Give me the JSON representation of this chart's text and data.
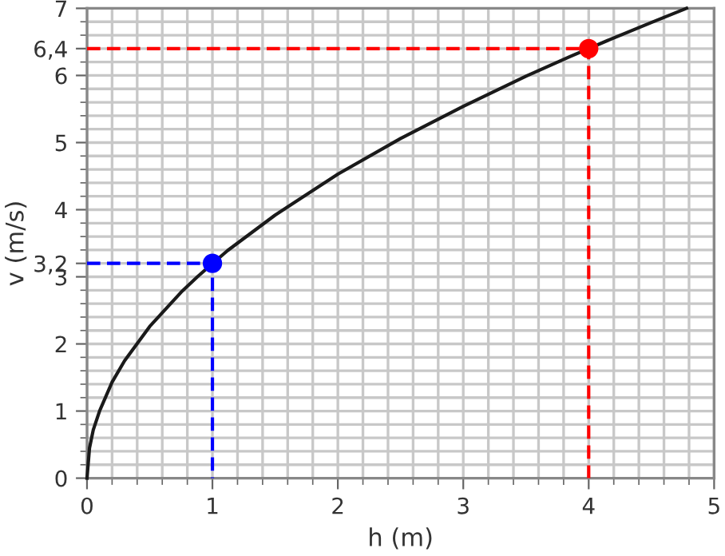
{
  "chart_data": {
    "type": "line",
    "xlabel": "h (m)",
    "ylabel": "v (m/s)",
    "xlim": [
      0,
      5
    ],
    "ylim": [
      0,
      7
    ],
    "xticks": [
      0,
      {
        "value": 0.2,
        "label": null
      },
      {
        "value": 0.4,
        "label": null
      },
      {
        "value": 0.6,
        "label": null
      },
      {
        "value": 0.8,
        "label": null
      },
      1,
      {
        "value": 1.2,
        "label": null
      },
      {
        "value": 1.4,
        "label": null
      },
      {
        "value": 1.6,
        "label": null
      },
      {
        "value": 1.8,
        "label": null
      },
      2,
      {
        "value": 2.2,
        "label": null
      },
      {
        "value": 2.4,
        "label": null
      },
      {
        "value": 2.6,
        "label": null
      },
      {
        "value": 2.8,
        "label": null
      },
      3,
      {
        "value": 3.2,
        "label": null
      },
      {
        "value": 3.4,
        "label": null
      },
      {
        "value": 3.6,
        "label": null
      },
      {
        "value": 3.8,
        "label": null
      },
      4,
      {
        "value": 4.2,
        "label": null
      },
      {
        "value": 4.4,
        "label": null
      },
      {
        "value": 4.6,
        "label": null
      },
      {
        "value": 4.8,
        "label": null
      },
      5
    ],
    "yticks": [
      0,
      {
        "value": 0.2,
        "label": null
      },
      {
        "value": 0.4,
        "label": null
      },
      {
        "value": 0.6,
        "label": null
      },
      {
        "value": 0.8,
        "label": null
      },
      1,
      {
        "value": 1.2,
        "label": null
      },
      {
        "value": 1.4,
        "label": null
      },
      {
        "value": 1.6,
        "label": null
      },
      {
        "value": 1.8,
        "label": null
      },
      2,
      {
        "value": 2.2,
        "label": null
      },
      {
        "value": 2.4,
        "label": null
      },
      {
        "value": 2.6,
        "label": null
      },
      {
        "value": 2.8,
        "label": null
      },
      3,
      {
        "value": 3.2,
        "label": "3,2"
      },
      {
        "value": 3.4,
        "label": null
      },
      {
        "value": 3.6,
        "label": null
      },
      {
        "value": 3.8,
        "label": null
      },
      4,
      {
        "value": 4.2,
        "label": null
      },
      {
        "value": 4.4,
        "label": null
      },
      {
        "value": 4.6,
        "label": null
      },
      {
        "value": 4.8,
        "label": null
      },
      5,
      {
        "value": 5.2,
        "label": null
      },
      {
        "value": 5.4,
        "label": null
      },
      {
        "value": 5.6,
        "label": null
      },
      {
        "value": 5.8,
        "label": null
      },
      6,
      {
        "value": 6.2,
        "label": null
      },
      {
        "value": 6.4,
        "label": "6,4"
      },
      {
        "value": 6.6,
        "label": null
      },
      {
        "value": 6.8,
        "label": null
      },
      7
    ],
    "grid": true,
    "series": [
      {
        "color": "#1a1a1a",
        "line_style": "solid",
        "x": [
          0,
          0.02,
          0.05,
          0.1,
          0.2,
          0.3,
          0.5,
          0.75,
          0.88,
          1.12,
          1.5,
          2,
          2.5,
          3,
          3.5,
          3.85,
          4.15,
          4.5,
          4.78
        ],
        "values": [
          0,
          0.45,
          0.72,
          1.0,
          1.43,
          1.75,
          2.26,
          2.77,
          3.0,
          3.39,
          3.92,
          4.53,
          5.06,
          5.54,
          5.99,
          6.28,
          6.52,
          6.79,
          7.0
        ]
      },
      {
        "color": "#0000ff",
        "line_style": "dashed",
        "x": [
          0,
          1,
          1
        ],
        "values": [
          3.2,
          3.2,
          0
        ]
      },
      {
        "color": "#ff0000",
        "line_style": "dashed",
        "x": [
          0,
          4,
          4
        ],
        "values": [
          6.4,
          6.4,
          0
        ]
      },
      {
        "type": "scatter",
        "color": "#0000ff",
        "marker": "circle",
        "x": [
          1
        ],
        "values": [
          3.2
        ]
      },
      {
        "type": "scatter",
        "color": "#ff0000",
        "marker": "circle",
        "x": [
          4
        ],
        "values": [
          6.4
        ]
      }
    ]
  }
}
